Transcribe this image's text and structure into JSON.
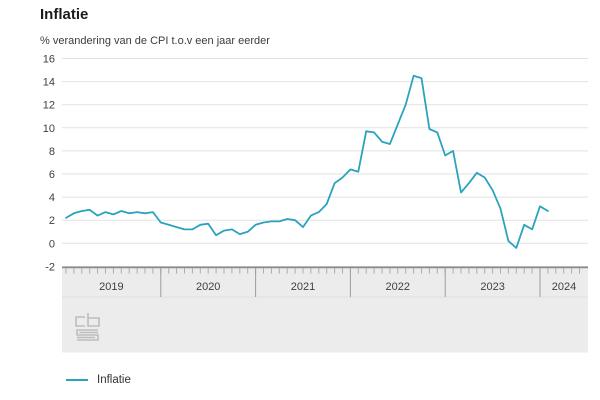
{
  "header": {
    "title": "Inflatie",
    "subtitle": "% verandering van de CPI t.o.v een jaar eerder"
  },
  "legend": {
    "label": "Inflatie",
    "line_color": "#2ba3bd"
  },
  "colors": {
    "line": "#2ba3bd",
    "grid": "#e2e2e2",
    "band_fill": "#ececec",
    "band_top_border": "#8a8a8a",
    "band_tick": "#ababab",
    "band_year_divider": "#9c9c9c",
    "axis_text": "#3f3f3f"
  },
  "footer": {
    "logo": "cbs-logo"
  },
  "chart_data": {
    "type": "line",
    "title": "Inflatie",
    "ylabel": "% verandering van de CPI t.o.v een jaar eerder",
    "x_start": "2019-01",
    "frequency": "monthly",
    "year_labels": [
      "2019",
      "2020",
      "2021",
      "2022",
      "2023",
      "2024"
    ],
    "y_ticks": [
      -2,
      0,
      2,
      4,
      6,
      8,
      10,
      12,
      14,
      16
    ],
    "ylim": [
      -2,
      16
    ],
    "grid": "horizontal",
    "legend_position": "bottom-left",
    "series": [
      {
        "name": "Inflatie",
        "color": "#2ba3bd",
        "values": [
          2.2,
          2.6,
          2.8,
          2.9,
          2.4,
          2.7,
          2.5,
          2.8,
          2.6,
          2.7,
          2.6,
          2.7,
          1.8,
          1.6,
          1.4,
          1.2,
          1.2,
          1.6,
          1.7,
          0.7,
          1.1,
          1.2,
          0.8,
          1.0,
          1.6,
          1.8,
          1.9,
          1.9,
          2.1,
          2.0,
          1.4,
          2.4,
          2.7,
          3.4,
          5.2,
          5.7,
          6.4,
          6.2,
          9.7,
          9.6,
          8.8,
          8.6,
          10.3,
          12.0,
          14.5,
          14.3,
          9.9,
          9.6,
          7.6,
          8.0,
          4.4,
          5.2,
          6.1,
          5.7,
          4.6,
          3.0,
          0.2,
          -0.4,
          1.6,
          1.2,
          3.2,
          2.8
        ]
      }
    ]
  }
}
